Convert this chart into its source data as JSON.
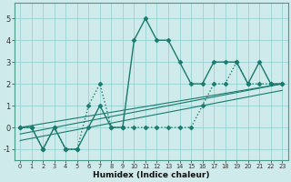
{
  "xlabel": "Humidex (Indice chaleur)",
  "xlim": [
    -0.5,
    23.5
  ],
  "ylim": [
    -1.5,
    5.7
  ],
  "yticks": [
    -1,
    0,
    1,
    2,
    3,
    4,
    5
  ],
  "xticks": [
    0,
    1,
    2,
    3,
    4,
    5,
    6,
    7,
    8,
    9,
    10,
    11,
    12,
    13,
    14,
    15,
    16,
    17,
    18,
    19,
    20,
    21,
    22,
    23
  ],
  "bg_color": "#ceeaea",
  "line_color": "#1a7a6e",
  "series": [
    {
      "x": [
        0,
        1,
        2,
        3,
        4,
        5,
        6,
        7,
        8,
        9,
        10,
        11,
        12,
        13,
        14,
        15,
        16,
        17,
        18,
        19,
        20,
        21,
        22,
        23
      ],
      "y": [
        0,
        0,
        -1,
        0,
        -1,
        -1,
        0,
        1,
        0,
        0,
        4,
        5,
        4,
        4,
        3,
        2,
        2,
        3,
        3,
        3,
        2,
        3,
        2,
        2
      ],
      "style": "solid",
      "marker": "D",
      "lw": 1.0,
      "ms": 2.5
    },
    {
      "x": [
        0,
        1,
        2,
        3,
        4,
        5,
        6,
        7,
        8,
        9,
        10,
        11,
        12,
        13,
        14,
        15,
        16,
        17,
        18,
        19,
        20,
        21,
        22,
        23
      ],
      "y": [
        0,
        0,
        -1,
        0,
        -1,
        -1,
        1,
        2,
        0,
        0,
        0,
        0,
        0,
        0,
        0,
        0,
        1,
        2,
        2,
        3,
        2,
        2,
        2,
        2
      ],
      "style": "dotted",
      "marker": "D",
      "lw": 1.0,
      "ms": 2.5
    },
    {
      "x": [
        0,
        23
      ],
      "y": [
        0,
        2
      ],
      "style": "solid",
      "marker": null,
      "lw": 0.8,
      "ms": 0
    },
    {
      "x": [
        0,
        23
      ],
      "y": [
        -0.3,
        2.0
      ],
      "style": "solid",
      "marker": null,
      "lw": 0.8,
      "ms": 0
    },
    {
      "x": [
        0,
        23
      ],
      "y": [
        -0.6,
        1.7
      ],
      "style": "solid",
      "marker": null,
      "lw": 0.8,
      "ms": 0
    }
  ]
}
